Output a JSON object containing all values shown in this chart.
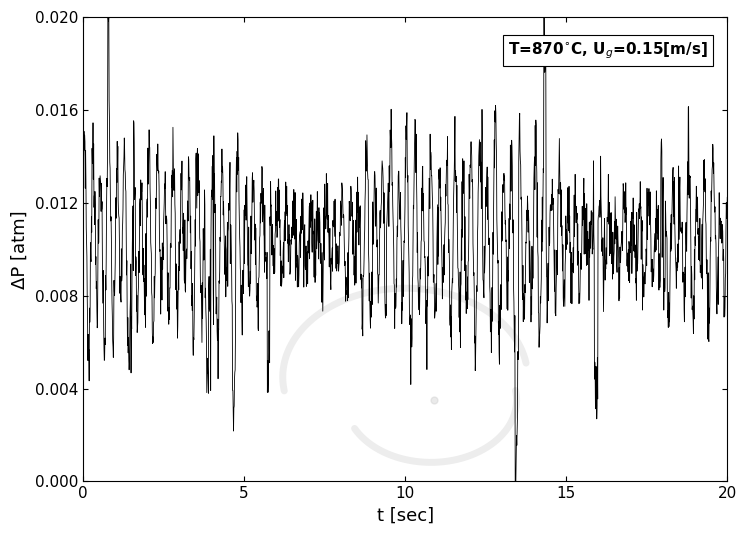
{
  "title": "",
  "xlabel": "t [sec]",
  "ylabel": "ΔP [atm]",
  "xlim": [
    0,
    20
  ],
  "ylim": [
    0.0,
    0.02
  ],
  "xticks": [
    0,
    5,
    10,
    15,
    20
  ],
  "yticks": [
    0.0,
    0.004,
    0.008,
    0.012,
    0.016,
    0.02
  ],
  "line_color": "#000000",
  "background_color": "#ffffff",
  "seed": 7,
  "n_points": 2000,
  "duration": 20.0,
  "base_mean": 0.0105,
  "noise_scale": 0.00085,
  "figsize": [
    7.48,
    5.36
  ],
  "dpi": 100
}
